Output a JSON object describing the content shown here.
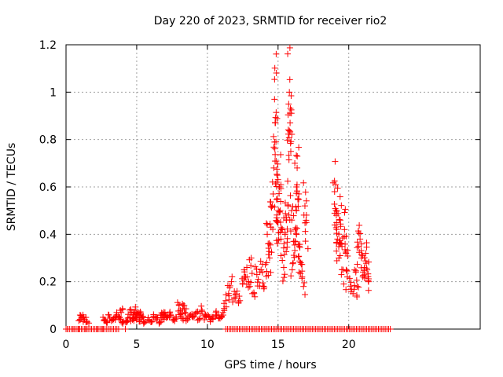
{
  "chart_data": {
    "type": "scatter",
    "title": "Day 220 of 2023, SRMTID for receiver rio2",
    "xlabel": "GPS time / hours",
    "ylabel": "SRMTID / TECUs",
    "xlim": [
      0,
      29.3
    ],
    "ylim": [
      0,
      1.2
    ],
    "x_ticks": [
      0,
      5,
      10,
      15,
      20
    ],
    "x_tick_labels": [
      "0",
      "5",
      "10",
      "15",
      "20"
    ],
    "y_ticks": [
      0,
      0.2,
      0.4,
      0.6,
      0.8,
      1.0,
      1.2
    ],
    "y_tick_labels": [
      "0",
      "0.2",
      "0.4",
      "0.6",
      "0.8",
      "1",
      "1.2"
    ],
    "grid": true,
    "marker": "+",
    "color": "#ff0000",
    "series": [
      {
        "name": "rio2",
        "points": [
          [
            0.1,
            0.0
          ],
          [
            0.5,
            0.0
          ],
          [
            0.9,
            0.0
          ],
          [
            1.0,
            0.04
          ],
          [
            1.1,
            0.05
          ],
          [
            1.2,
            0.06
          ],
          [
            1.3,
            0.04
          ],
          [
            1.4,
            0.0
          ],
          [
            1.5,
            0.03
          ],
          [
            1.8,
            0.0
          ],
          [
            2.2,
            0.0
          ],
          [
            2.6,
            0.0
          ],
          [
            2.7,
            0.04
          ],
          [
            2.9,
            0.03
          ],
          [
            3.1,
            0.05
          ],
          [
            3.3,
            0.04
          ],
          [
            3.5,
            0.05
          ],
          [
            3.6,
            0.06
          ],
          [
            3.8,
            0.05
          ],
          [
            3.9,
            0.07
          ],
          [
            4.0,
            0.03
          ],
          [
            4.2,
            0.0
          ],
          [
            4.3,
            0.03
          ],
          [
            4.5,
            0.05
          ],
          [
            4.6,
            0.07
          ],
          [
            4.7,
            0.04
          ],
          [
            4.8,
            0.06
          ],
          [
            4.9,
            0.08
          ],
          [
            5.0,
            0.05
          ],
          [
            5.1,
            0.07
          ],
          [
            5.2,
            0.04
          ],
          [
            5.3,
            0.06
          ],
          [
            5.4,
            0.05
          ],
          [
            5.6,
            0.03
          ],
          [
            5.8,
            0.04
          ],
          [
            6.0,
            0.03
          ],
          [
            6.2,
            0.05
          ],
          [
            6.4,
            0.04
          ],
          [
            6.6,
            0.03
          ],
          [
            6.7,
            0.06
          ],
          [
            6.9,
            0.05
          ],
          [
            7.0,
            0.07
          ],
          [
            7.2,
            0.05
          ],
          [
            7.4,
            0.06
          ],
          [
            7.6,
            0.04
          ],
          [
            7.8,
            0.05
          ],
          [
            8.0,
            0.1
          ],
          [
            8.1,
            0.08
          ],
          [
            8.2,
            0.05
          ],
          [
            8.3,
            0.1
          ],
          [
            8.4,
            0.07
          ],
          [
            8.6,
            0.04
          ],
          [
            8.8,
            0.06
          ],
          [
            9.0,
            0.05
          ],
          [
            9.2,
            0.07
          ],
          [
            9.4,
            0.04
          ],
          [
            9.6,
            0.08
          ],
          [
            9.8,
            0.05
          ],
          [
            10.0,
            0.06
          ],
          [
            10.2,
            0.04
          ],
          [
            10.4,
            0.05
          ],
          [
            10.6,
            0.07
          ],
          [
            10.8,
            0.06
          ],
          [
            11.0,
            0.05
          ],
          [
            11.1,
            0.07
          ],
          [
            11.3,
            0.12
          ],
          [
            11.5,
            0.15
          ],
          [
            11.7,
            0.2
          ],
          [
            11.9,
            0.13
          ],
          [
            12.1,
            0.16
          ],
          [
            12.3,
            0.12
          ],
          [
            12.5,
            0.19
          ],
          [
            12.6,
            0.25
          ],
          [
            12.8,
            0.22
          ],
          [
            13.0,
            0.18
          ],
          [
            13.1,
            0.3
          ],
          [
            13.3,
            0.15
          ],
          [
            13.5,
            0.23
          ],
          [
            13.6,
            0.21
          ],
          [
            13.8,
            0.25
          ],
          [
            14.0,
            0.17
          ],
          [
            14.2,
            0.28
          ],
          [
            14.3,
            0.36
          ],
          [
            14.4,
            0.3
          ],
          [
            14.5,
            0.43
          ],
          [
            14.6,
            0.52
          ],
          [
            14.7,
            0.68
          ],
          [
            14.75,
            0.97
          ],
          [
            14.8,
            0.87
          ],
          [
            14.85,
            0.79
          ],
          [
            14.9,
            0.62
          ],
          [
            14.95,
            0.55
          ],
          [
            15.0,
            0.45
          ],
          [
            15.1,
            0.6
          ],
          [
            15.15,
            0.5
          ],
          [
            15.2,
            0.38
          ],
          [
            15.3,
            0.29
          ],
          [
            15.4,
            0.26
          ],
          [
            15.5,
            0.4
          ],
          [
            15.6,
            0.46
          ],
          [
            15.7,
            0.52
          ],
          [
            15.75,
            0.95
          ],
          [
            15.8,
            1.0
          ],
          [
            15.85,
            0.87
          ],
          [
            15.9,
            0.75
          ],
          [
            15.95,
            0.5
          ],
          [
            16.0,
            0.25
          ],
          [
            16.1,
            0.37
          ],
          [
            16.2,
            0.42
          ],
          [
            16.3,
            0.6
          ],
          [
            16.35,
            0.68
          ],
          [
            16.4,
            0.55
          ],
          [
            16.5,
            0.35
          ],
          [
            16.6,
            0.28
          ],
          [
            16.7,
            0.22
          ],
          [
            16.8,
            0.18
          ],
          [
            16.9,
            0.52
          ],
          [
            17.0,
            0.45
          ],
          [
            19.0,
            0.58
          ],
          [
            19.1,
            0.5
          ],
          [
            19.15,
            0.42
          ],
          [
            19.2,
            0.38
          ],
          [
            19.3,
            0.3
          ],
          [
            19.4,
            0.46
          ],
          [
            19.5,
            0.36
          ],
          [
            19.6,
            0.25
          ],
          [
            19.7,
            0.42
          ],
          [
            19.8,
            0.32
          ],
          [
            19.9,
            0.22
          ],
          [
            20.1,
            0.18
          ],
          [
            20.3,
            0.15
          ],
          [
            20.5,
            0.24
          ],
          [
            20.6,
            0.18
          ],
          [
            20.7,
            0.35
          ],
          [
            20.8,
            0.38
          ],
          [
            20.9,
            0.3
          ],
          [
            21.0,
            0.22
          ],
          [
            21.1,
            0.26
          ],
          [
            21.2,
            0.32
          ],
          [
            21.3,
            0.25
          ],
          [
            21.4,
            0.2
          ]
        ],
        "zero_band": [
          [
            0.0,
            3.8
          ],
          [
            11.3,
            23.0
          ]
        ]
      }
    ]
  }
}
